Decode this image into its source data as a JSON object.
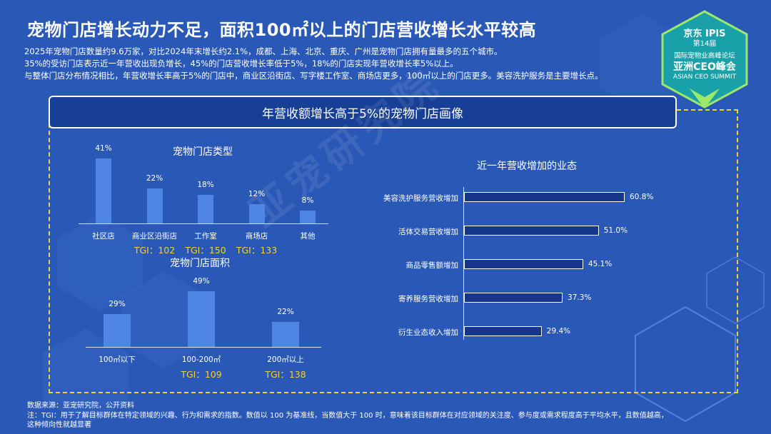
{
  "header": {
    "title": "宠物门店增长动力不足，面积100㎡以上的门店营收增长水平较高",
    "paragraphs": [
      "2025年宠物门店数量约9.6万家，对比2024年末增长约2.1%，成都、上海、北京、重庆、广州是宠物门店拥有量最多的五个城市。",
      "35%的受访门店表示近一年营收出现负增长，45%的门店营收增长率低于5%，18%的门店实现年营收增长率5%以上。",
      "与整体门店分布情况相比，年营收增长率高于5%的门店中，商业区沿街店、写字楼工作室、商场店更多，100㎡以上的门店更多。美容洗护服务是主要增长点。"
    ]
  },
  "badge": {
    "brand": "京东",
    "edition": "第14届",
    "ipis": "IPIS",
    "subtitle": "国际宠物业高峰论坛",
    "name": "亚洲CEO峰会",
    "english": "ASIAN CEO SUMMIT"
  },
  "banner": "年营收额增长高于5%的宠物门店画像",
  "watermark": "亚宠研究院",
  "colors": {
    "background": "#2a58b6",
    "bar": "#4f86e6",
    "hbar": "#18358c",
    "tgi": "#f2d03a",
    "frame": "#f2d03a"
  },
  "chart_data": [
    {
      "type": "bar",
      "title": "宠物门店类型",
      "categories": [
        "社区店",
        "商业区沿街店",
        "工作室",
        "商场店",
        "其他"
      ],
      "values": [
        41,
        22,
        18,
        12,
        8
      ],
      "value_labels": [
        "41%",
        "22%",
        "18%",
        "12%",
        "8%"
      ],
      "tgi_labels": [
        "",
        "TGI：102",
        "TGI：150",
        "TGI：133",
        ""
      ],
      "ylim": [
        0,
        41
      ]
    },
    {
      "type": "bar",
      "title": "宠物门店面积",
      "categories": [
        "100㎡以下",
        "100-200㎡",
        "200㎡以上"
      ],
      "values": [
        29,
        49,
        22
      ],
      "value_labels": [
        "29%",
        "49%",
        "22%"
      ],
      "tgi_labels": [
        "",
        "TGI：109",
        "TGI：138"
      ],
      "ylim": [
        0,
        49
      ]
    },
    {
      "type": "bar",
      "orientation": "horizontal",
      "title": "近一年营收增加的业态",
      "categories": [
        "美容洗护服务营收增加",
        "活体交易营收增加",
        "商品零售额增加",
        "寄养服务营收增加",
        "衍生业态收入增加"
      ],
      "values": [
        60.8,
        51.0,
        45.1,
        37.3,
        29.4
      ],
      "value_labels": [
        "60.8%",
        "51.0%",
        "45.1%",
        "37.3%",
        "29.4%"
      ],
      "xlim": [
        0,
        60.8
      ]
    }
  ],
  "footer": {
    "source": "数据来源：亚宠研究院，公开资料",
    "note_line1": "注：TGI：用于了解目标群体在特定领域的兴趣、行为和需求的指数。数值以 100 为基准线，当数值大于 100 时，意味着该目标群体在对应领域的关注度、参与度或需求程度高于平均水平，且数值越高，",
    "note_line2": "这种倾向性就越显著"
  }
}
